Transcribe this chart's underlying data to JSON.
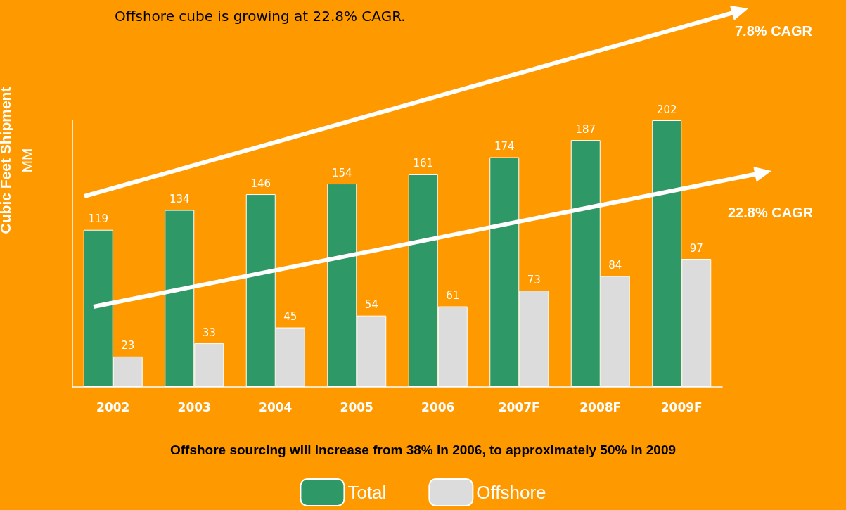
{
  "chart_data": {
    "type": "bar",
    "title": "Offshore cube is growing at 22.8% CAGR.",
    "ylabel": "Cubic Feet Shipment\nMM",
    "categories": [
      "2002",
      "2003",
      "2004",
      "2005",
      "2006",
      "2007F",
      "2008F",
      "2009F"
    ],
    "series": [
      {
        "name": "Total",
        "color": "#2e9866",
        "values": [
          119,
          134,
          146,
          154,
          161,
          174,
          187,
          202
        ]
      },
      {
        "name": "Offshore",
        "color": "#dcdcdc",
        "values": [
          23,
          33,
          45,
          54,
          61,
          73,
          84,
          97
        ]
      }
    ],
    "data_labels": true,
    "tick_labels": "x",
    "grid": false,
    "legend": "bottom",
    "annotations": [
      "7.8% CAGR",
      "22.8% CAGR",
      "Offshore sourcing will increase from 38% in 2006, to approximately 50% in 2009"
    ]
  }
}
